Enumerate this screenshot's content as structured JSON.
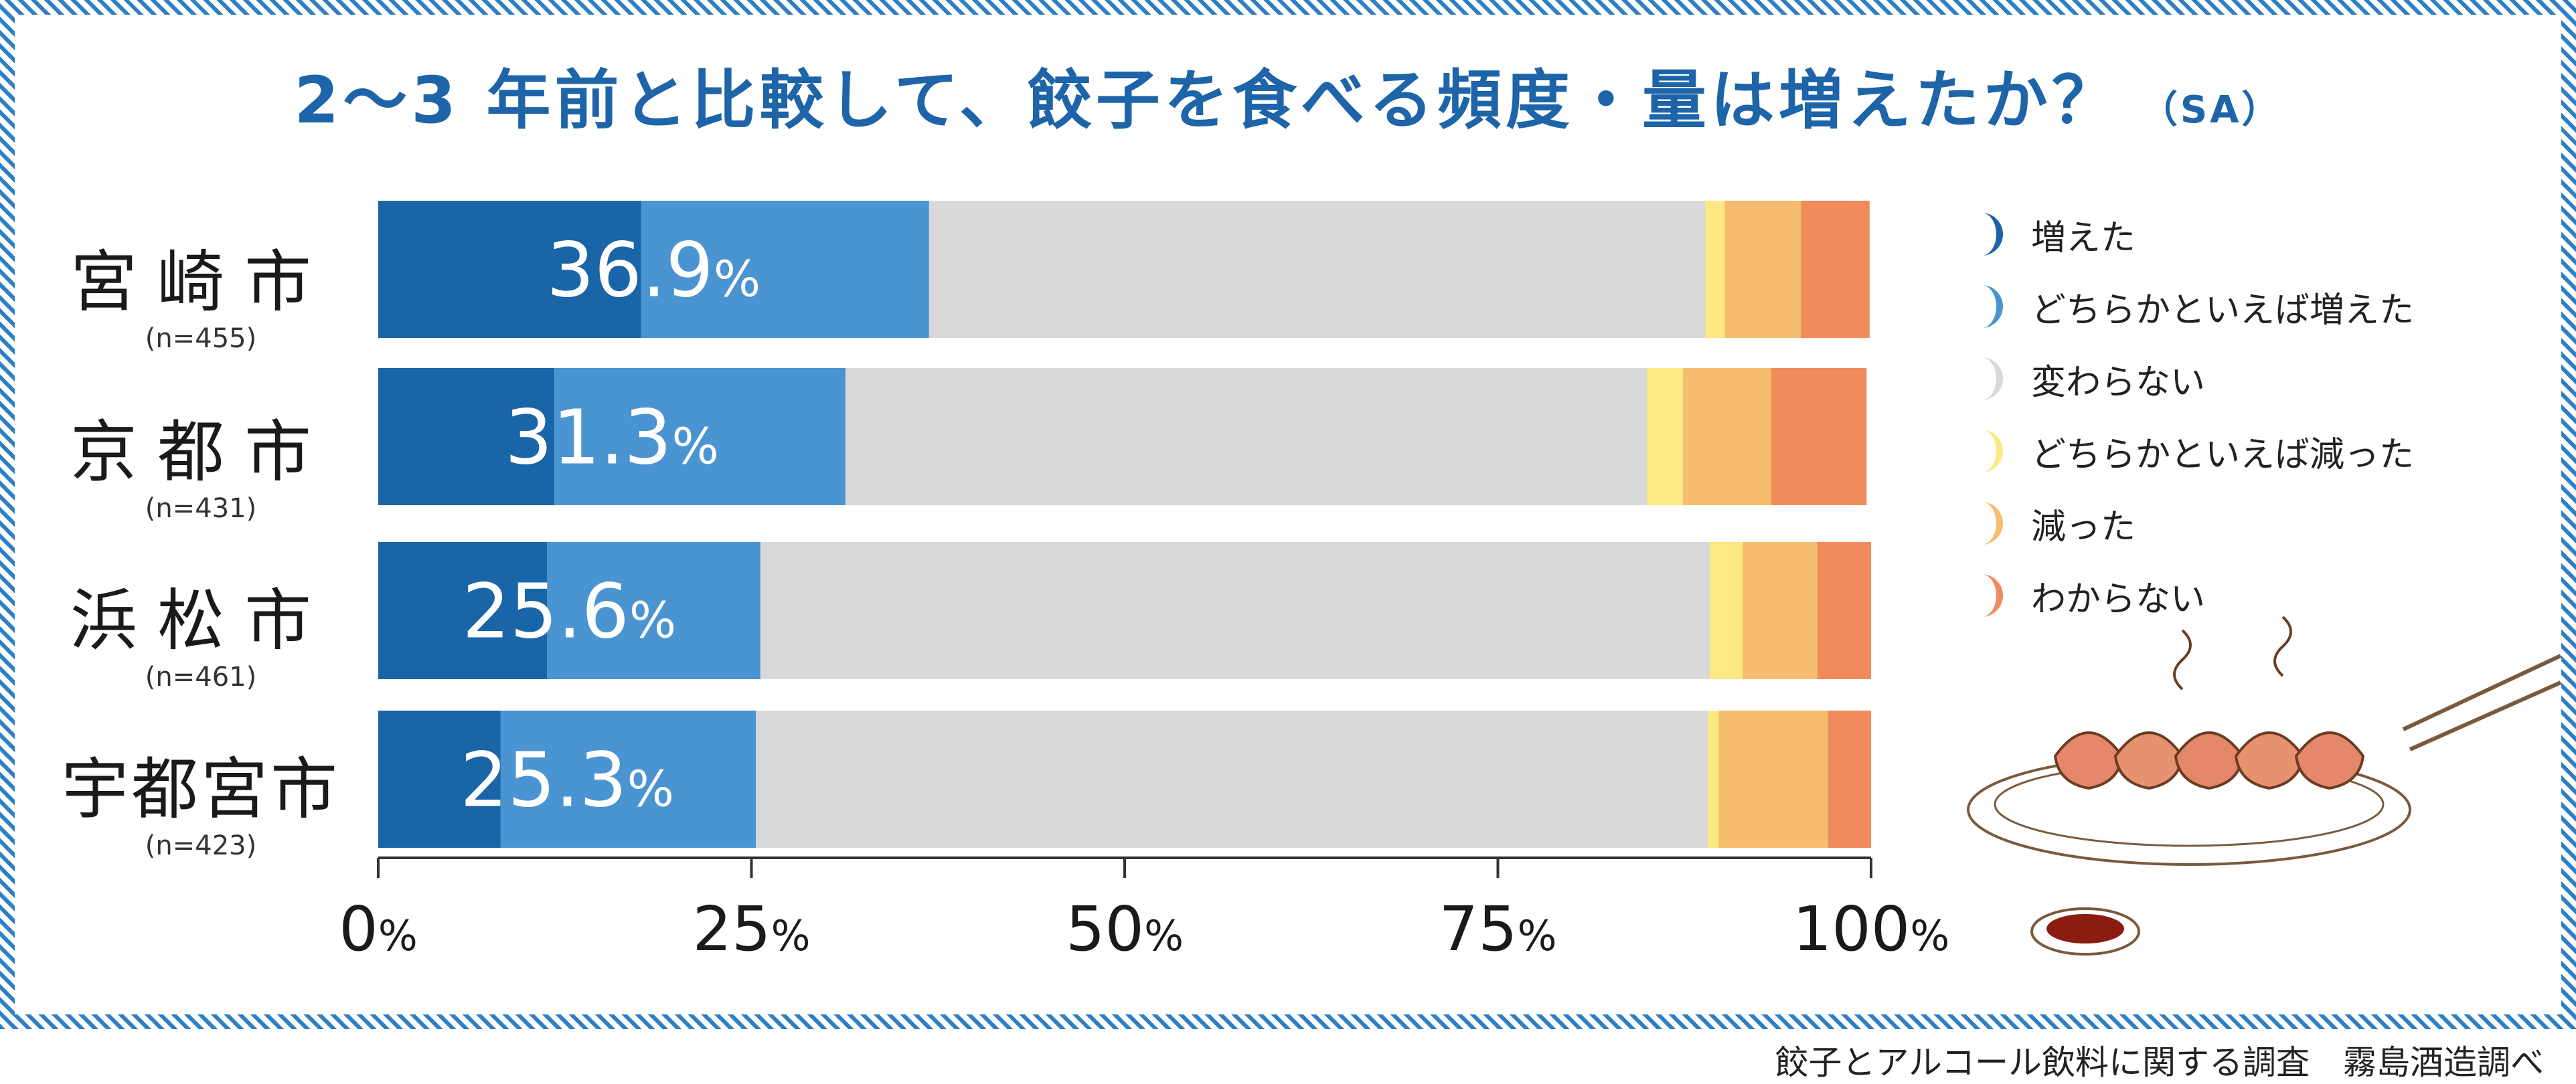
{
  "title": {
    "main": "2～3 年前と比較して、餃子を食べる頻度・量は増えたか？",
    "suffix": "（SA）"
  },
  "source": "餃子とアルコール飲料に関する調査　霧島酒造調べ",
  "colors": {
    "frame": "#2f7fc4",
    "title": "#1d64a8",
    "series": [
      "#1a64a8",
      "#4b94d2",
      "#d9d9d9",
      "#fde984",
      "#f6bd6e",
      "#f18b5c"
    ]
  },
  "rows": [
    {
      "name": "宮崎市",
      "n": "(n=455)",
      "combined_label": "36.9%"
    },
    {
      "name": "京都市",
      "n": "(n=431)",
      "combined_label": "31.3%"
    },
    {
      "name": "浜松市",
      "n": "(n=461)",
      "combined_label": "25.6%"
    },
    {
      "name": "宇都宮市",
      "n": "(n=423)",
      "combined_label": "25.3%"
    }
  ],
  "legend": [
    {
      "label": "増えた",
      "icon": "crescent-icon"
    },
    {
      "label": "どちらかといえば増えた",
      "icon": "crescent-icon"
    },
    {
      "label": "変わらない",
      "icon": "crescent-icon"
    },
    {
      "label": "どちらかといえば減った",
      "icon": "crescent-icon"
    },
    {
      "label": "減った",
      "icon": "crescent-icon"
    },
    {
      "label": "わからない",
      "icon": "crescent-icon"
    }
  ],
  "illustration": {
    "icon": "gyoza-plate-icon"
  },
  "chart_data": {
    "type": "bar",
    "orientation": "horizontal",
    "stacked": true,
    "categories": [
      "宮崎市",
      "京都市",
      "浜松市",
      "宇都宮市"
    ],
    "series": [
      {
        "name": "増えた",
        "values": [
          17.6,
          11.8,
          11.3,
          8.2
        ]
      },
      {
        "name": "どちらかといえば増えた",
        "values": [
          19.3,
          19.5,
          14.3,
          17.1
        ]
      },
      {
        "name": "変わらない",
        "values": [
          52.0,
          53.7,
          63.6,
          63.8
        ]
      },
      {
        "name": "どちらかといえば減った",
        "values": [
          1.3,
          2.4,
          2.2,
          0.7
        ]
      },
      {
        "name": "減った",
        "values": [
          5.1,
          5.9,
          5.0,
          7.3
        ]
      },
      {
        "name": "わからない",
        "values": [
          4.6,
          6.4,
          3.6,
          2.9
        ]
      }
    ],
    "data_labels": [
      "36.9%",
      "31.3%",
      "25.6%",
      "25.3%"
    ],
    "x_ticks": [
      "0%",
      "25%",
      "50%",
      "75%",
      "100%"
    ],
    "xlim": [
      0,
      100
    ],
    "grid": false,
    "legend_position": "right"
  }
}
